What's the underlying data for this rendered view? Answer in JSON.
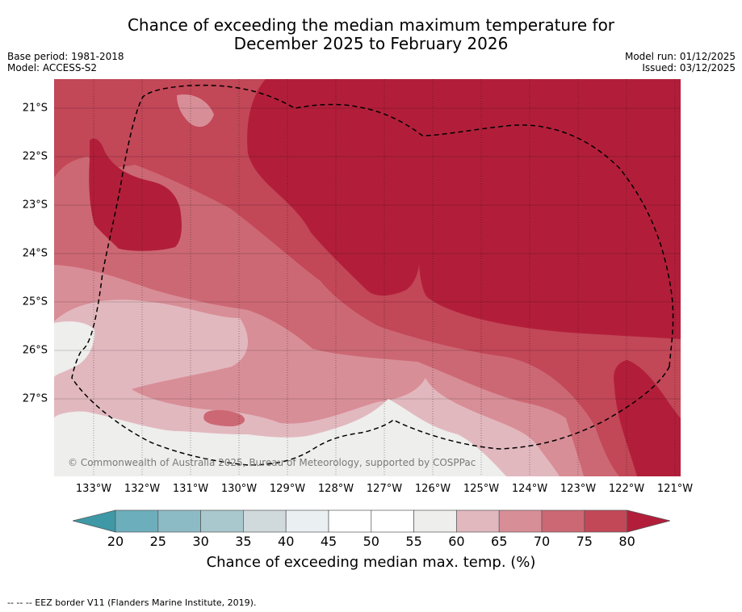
{
  "title_line1": "Chance of exceeding the median maximum temperature for",
  "title_line2": "December 2025 to February 2026",
  "base_period": "Base period: 1981-2018",
  "model": "Model: ACCESS-S2",
  "model_run": "Model run: 01/12/2025",
  "issued": "Issued: 03/12/2025",
  "copyright": "© Commonwealth of Australia 2025, Bureau of Meteorology, supported by COSPPac",
  "lat_labels": [
    "21°S",
    "22°S",
    "23°S",
    "24°S",
    "25°S",
    "26°S",
    "27°S"
  ],
  "lon_labels": [
    "133°W",
    "132°W",
    "131°W",
    "130°W",
    "129°W",
    "128°W",
    "127°W",
    "126°W",
    "125°W",
    "124°W",
    "123°W",
    "122°W",
    "121°W"
  ],
  "colorbar": {
    "label": "Chance of exceeding median max. temp. (%)",
    "ticks": [
      "20",
      "25",
      "30",
      "35",
      "40",
      "45",
      "50",
      "55",
      "60",
      "65",
      "70",
      "75",
      "80"
    ],
    "colors": [
      "#3e98a6",
      "#6daebd",
      "#8cbbc6",
      "#a9c8cd",
      "#d0dadd",
      "#eaeff2",
      "#ffffff",
      "#ffffff",
      "#eeeeec",
      "#e2b8bf",
      "#d88e97",
      "#cc6874",
      "#c24757",
      "#b21e3a"
    ]
  },
  "footnote": "--  --  -- EEZ border V11 (Flanders Marine Institute, 2019)."
}
